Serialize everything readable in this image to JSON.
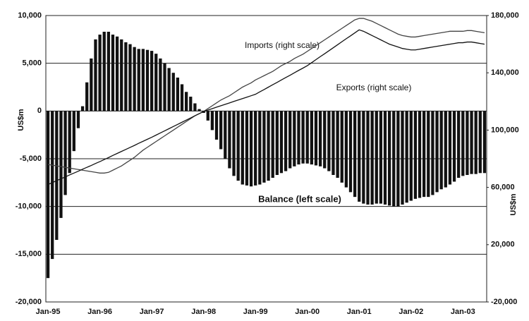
{
  "chart_data": {
    "type": "bar_line",
    "annotations": [
      "Imports (right scale)",
      "Exports (right scale)",
      "Balance (left scale)"
    ],
    "ylabel": "US$m",
    "y2label": "US$m",
    "categories": [
      "Jan-95",
      null,
      null,
      null,
      null,
      null,
      null,
      null,
      null,
      null,
      null,
      null,
      "Jan-96",
      null,
      null,
      null,
      null,
      null,
      null,
      null,
      null,
      null,
      null,
      null,
      "Jan-97",
      null,
      null,
      null,
      null,
      null,
      null,
      null,
      null,
      null,
      null,
      null,
      "Jan-98",
      null,
      null,
      null,
      null,
      null,
      null,
      null,
      null,
      null,
      null,
      null,
      "Jan-99",
      null,
      null,
      null,
      null,
      null,
      null,
      null,
      null,
      null,
      null,
      null,
      "Jan-00",
      null,
      null,
      null,
      null,
      null,
      null,
      null,
      null,
      null,
      null,
      null,
      "Jan-01",
      null,
      null,
      null,
      null,
      null,
      null,
      null,
      null,
      null,
      null,
      null,
      "Jan-02",
      null,
      null,
      null,
      null,
      null,
      null,
      null,
      null,
      null,
      null,
      null,
      "Jan-03",
      null,
      null,
      null,
      null,
      null
    ],
    "series": [
      {
        "name": "Balance",
        "type": "bar",
        "axis": "y",
        "color": "#111111",
        "values": [
          -17500,
          -15500,
          -13500,
          -11200,
          -8800,
          -6500,
          -4200,
          -1800,
          500,
          3000,
          5500,
          7500,
          8000,
          8300,
          8300,
          8000,
          7800,
          7500,
          7200,
          7000,
          6700,
          6500,
          6500,
          6400,
          6300,
          6000,
          5500,
          5000,
          4500,
          4000,
          3500,
          2800,
          2000,
          1500,
          800,
          200,
          -200,
          -1000,
          -2000,
          -3000,
          -4000,
          -5000,
          -6000,
          -6800,
          -7300,
          -7700,
          -7800,
          -7900,
          -7800,
          -7700,
          -7500,
          -7300,
          -7000,
          -6700,
          -6500,
          -6300,
          -6000,
          -5800,
          -5600,
          -5500,
          -5500,
          -5600,
          -5700,
          -5800,
          -6000,
          -6300,
          -6700,
          -7000,
          -7500,
          -8000,
          -8500,
          -9000,
          -9500,
          -9700,
          -9800,
          -9800,
          -9700,
          -9700,
          -9800,
          -9900,
          -10000,
          -10000,
          -9800,
          -9600,
          -9400,
          -9200,
          -9100,
          -9000,
          -9000,
          -8800,
          -8500,
          -8200,
          -8000,
          -7700,
          -7400,
          -7000,
          -6800,
          -6700,
          -6600,
          -6600,
          -6500,
          -6500
        ]
      },
      {
        "name": "Imports",
        "type": "line",
        "axis": "y2",
        "color": "#444444",
        "values": [
          76000,
          75500,
          75000,
          74500,
          74000,
          73500,
          73000,
          72500,
          72000,
          71500,
          71000,
          70500,
          70000,
          70000,
          70500,
          72000,
          73500,
          75000,
          77000,
          79000,
          81000,
          83500,
          86000,
          88000,
          90000,
          92000,
          94000,
          96000,
          98000,
          100000,
          102000,
          104000,
          106000,
          108000,
          110000,
          111500,
          113000,
          115000,
          117000,
          119000,
          121000,
          122500,
          124000,
          126000,
          128000,
          130000,
          131500,
          133000,
          135000,
          136500,
          138000,
          139500,
          141000,
          143000,
          145000,
          146500,
          148000,
          150000,
          151500,
          153000,
          155000,
          157000,
          159000,
          161000,
          163000,
          165000,
          167000,
          169000,
          171000,
          173000,
          175000,
          177000,
          178000,
          178000,
          177000,
          176000,
          174500,
          173000,
          171500,
          170000,
          168500,
          167000,
          166000,
          165500,
          165000,
          165000,
          165500,
          166000,
          166500,
          167000,
          167500,
          168000,
          168500,
          169000,
          169000,
          169000,
          169000,
          169500,
          169500,
          169000,
          168500,
          168000
        ]
      },
      {
        "name": "Exports",
        "type": "line",
        "axis": "y2",
        "color": "#111111",
        "values": [
          62000,
          63300,
          64700,
          66000,
          67300,
          68700,
          70000,
          71300,
          72700,
          74000,
          75300,
          76700,
          78000,
          79400,
          80800,
          82300,
          83700,
          85100,
          86500,
          87900,
          89300,
          90800,
          92200,
          93600,
          95000,
          96500,
          98000,
          99500,
          101000,
          102500,
          104000,
          105500,
          107000,
          108500,
          110000,
          111500,
          113000,
          114000,
          115000,
          116000,
          117000,
          118000,
          119000,
          120000,
          121000,
          122000,
          123000,
          124000,
          125000,
          126700,
          128300,
          130000,
          131700,
          133300,
          135000,
          136700,
          138300,
          140000,
          141700,
          143300,
          145000,
          147100,
          149200,
          151300,
          153300,
          155400,
          157500,
          159600,
          161700,
          163800,
          165800,
          167900,
          170000,
          169000,
          167500,
          166000,
          164500,
          163000,
          161500,
          160000,
          159000,
          158000,
          157000,
          156500,
          156000,
          156000,
          156500,
          157000,
          157500,
          158000,
          158500,
          159000,
          159500,
          160000,
          160500,
          161000,
          161000,
          161500,
          161500,
          161000,
          160500,
          160000
        ]
      }
    ],
    "ylim": [
      -20000,
      10000
    ],
    "yticks": [
      {
        "value": -20000,
        "label": "-20,000"
      },
      {
        "value": -15000,
        "label": "-15,000"
      },
      {
        "value": -10000,
        "label": "-10,000"
      },
      {
        "value": -5000,
        "label": "-5,000"
      },
      0,
      {
        "value": 5000,
        "label": "5,000"
      },
      {
        "value": 10000,
        "label": "10,000"
      }
    ],
    "y2lim": [
      -20000,
      180000
    ],
    "y2ticks": [
      {
        "value": -20000,
        "label": "-20,000"
      },
      {
        "value": 20000,
        "label": "20,000"
      },
      {
        "value": 60000,
        "label": "60,000"
      },
      {
        "value": 100000,
        "label": "100,000"
      },
      {
        "value": 140000,
        "label": "140,000"
      },
      {
        "value": 180000,
        "label": "180,000"
      }
    ],
    "grid": true
  }
}
